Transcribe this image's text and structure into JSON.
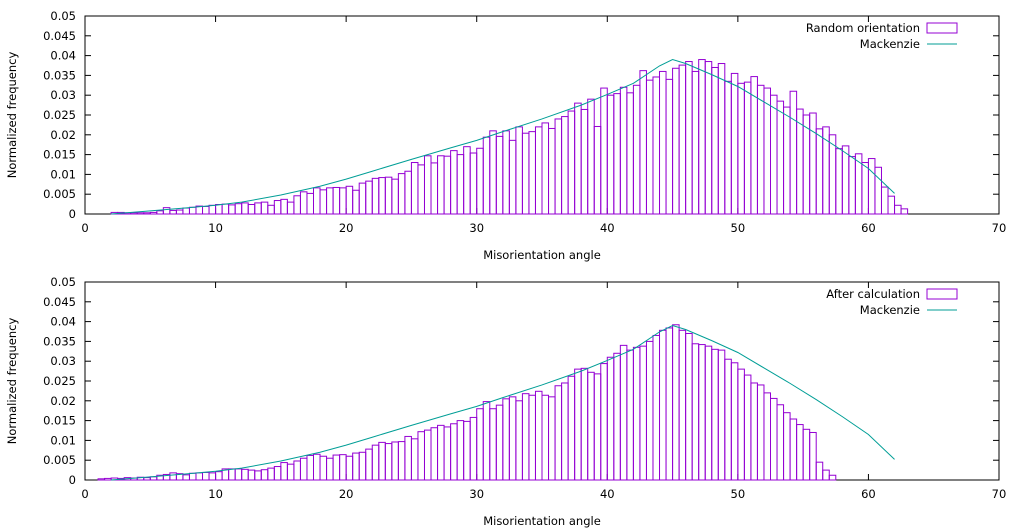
{
  "chart_data": [
    {
      "type": "bar",
      "xlabel": "Misorientation angle",
      "ylabel": "Normalized frequency",
      "xlim": [
        0,
        70
      ],
      "ylim": [
        0,
        0.05
      ],
      "xticks": [
        "0",
        "10",
        "20",
        "30",
        "40",
        "50",
        "60",
        "70"
      ],
      "yticks": [
        "0",
        "0.005",
        "0.01",
        "0.015",
        "0.02",
        "0.025",
        "0.03",
        "0.035",
        "0.04",
        "0.045",
        "0.05"
      ],
      "grid": false,
      "legend_position": "top-right",
      "bin_start": 1.5,
      "bin_width": 0.5,
      "series": [
        {
          "name": "Random orientation",
          "kind": "histogram",
          "color": "#9400d3",
          "values": [
            0,
            0.0004,
            0.0004,
            0.0003,
            0.0003,
            0.0003,
            0.0003,
            0.0004,
            0.0008,
            0.0016,
            0.0009,
            0.001,
            0.0015,
            0.0017,
            0.002,
            0.0019,
            0.0022,
            0.0024,
            0.0025,
            0.0023,
            0.0026,
            0.0028,
            0.0024,
            0.0028,
            0.003,
            0.0022,
            0.0034,
            0.0037,
            0.003,
            0.0046,
            0.0056,
            0.0052,
            0.0066,
            0.0061,
            0.0066,
            0.0067,
            0.0066,
            0.007,
            0.006,
            0.0078,
            0.0083,
            0.009,
            0.0092,
            0.0093,
            0.0088,
            0.0102,
            0.0108,
            0.013,
            0.0124,
            0.0147,
            0.0129,
            0.0147,
            0.0146,
            0.016,
            0.015,
            0.017,
            0.0154,
            0.0166,
            0.0194,
            0.021,
            0.0196,
            0.021,
            0.0186,
            0.022,
            0.0204,
            0.0208,
            0.022,
            0.023,
            0.0216,
            0.024,
            0.0246,
            0.026,
            0.028,
            0.0264,
            0.029,
            0.0221,
            0.0318,
            0.03,
            0.0304,
            0.032,
            0.0306,
            0.0325,
            0.0362,
            0.0338,
            0.0346,
            0.036,
            0.034,
            0.0368,
            0.0376,
            0.0385,
            0.036,
            0.039,
            0.0385,
            0.037,
            0.038,
            0.0335,
            0.0355,
            0.033,
            0.0333,
            0.0347,
            0.0325,
            0.0318,
            0.03,
            0.0285,
            0.027,
            0.031,
            0.0265,
            0.025,
            0.0255,
            0.0215,
            0.022,
            0.02,
            0.0165,
            0.0172,
            0.0145,
            0.0152,
            0.013,
            0.014,
            0.0118,
            0.0068,
            0.0045,
            0.0022,
            0.0013
          ]
        },
        {
          "name": "Mackenzie",
          "kind": "line",
          "color": "#009e96",
          "x": [
            2,
            5,
            8,
            10,
            12,
            15,
            18,
            20,
            22,
            25,
            28,
            30,
            32,
            35,
            38,
            40,
            42,
            44,
            45,
            46,
            48,
            50,
            52,
            54,
            56,
            58,
            60,
            62
          ],
          "y": [
            0,
            0.0008,
            0.0016,
            0.0022,
            0.003,
            0.0048,
            0.007,
            0.0088,
            0.0108,
            0.0138,
            0.0167,
            0.0186,
            0.0208,
            0.024,
            0.0275,
            0.0302,
            0.033,
            0.0374,
            0.039,
            0.038,
            0.0352,
            0.0322,
            0.0283,
            0.0244,
            0.0203,
            0.016,
            0.0115,
            0.0052
          ]
        }
      ]
    },
    {
      "type": "bar",
      "xlabel": "Misorientation angle",
      "ylabel": "Normalized frequency",
      "xlim": [
        0,
        70
      ],
      "ylim": [
        0,
        0.05
      ],
      "xticks": [
        "0",
        "10",
        "20",
        "30",
        "40",
        "50",
        "60",
        "70"
      ],
      "yticks": [
        "0",
        "0.005",
        "0.01",
        "0.015",
        "0.02",
        "0.025",
        "0.03",
        "0.035",
        "0.04",
        "0.045",
        "0.05"
      ],
      "grid": false,
      "legend_position": "top-right",
      "bin_start": 1.0,
      "bin_width": 0.5,
      "series": [
        {
          "name": "After calculation",
          "kind": "histogram",
          "color": "#9400d3",
          "values": [
            0.0003,
            0.0004,
            0.0005,
            0.0004,
            0.0006,
            0.0005,
            0.0007,
            0.0006,
            0.0008,
            0.0012,
            0.0014,
            0.0018,
            0.0016,
            0.0013,
            0.0017,
            0.0018,
            0.0019,
            0.0018,
            0.0021,
            0.0028,
            0.0028,
            0.0028,
            0.0027,
            0.0025,
            0.0023,
            0.0026,
            0.003,
            0.0034,
            0.0044,
            0.004,
            0.0048,
            0.0055,
            0.0062,
            0.0065,
            0.006,
            0.0055,
            0.0063,
            0.0064,
            0.006,
            0.0068,
            0.007,
            0.0078,
            0.0088,
            0.0095,
            0.0092,
            0.0096,
            0.0097,
            0.011,
            0.0104,
            0.0122,
            0.0126,
            0.0132,
            0.0138,
            0.0134,
            0.0142,
            0.015,
            0.0148,
            0.0158,
            0.018,
            0.0198,
            0.018,
            0.0189,
            0.0205,
            0.021,
            0.02,
            0.0218,
            0.0214,
            0.0224,
            0.0214,
            0.021,
            0.0238,
            0.0245,
            0.0262,
            0.028,
            0.0282,
            0.0272,
            0.0268,
            0.0294,
            0.031,
            0.032,
            0.034,
            0.0328,
            0.0335,
            0.0338,
            0.035,
            0.0365,
            0.0378,
            0.0384,
            0.0392,
            0.0378,
            0.037,
            0.0344,
            0.0342,
            0.0338,
            0.033,
            0.0328,
            0.0305,
            0.0296,
            0.028,
            0.0265,
            0.0245,
            0.024,
            0.022,
            0.0206,
            0.019,
            0.017,
            0.0154,
            0.014,
            0.0128,
            0.012,
            0.0045,
            0.0025,
            0.0012
          ]
        },
        {
          "name": "Mackenzie",
          "kind": "line",
          "color": "#009e96",
          "x": [
            2,
            5,
            8,
            10,
            12,
            15,
            18,
            20,
            22,
            25,
            28,
            30,
            32,
            35,
            38,
            40,
            42,
            44,
            45,
            46,
            48,
            50,
            52,
            54,
            56,
            58,
            60,
            62
          ],
          "y": [
            0,
            0.0008,
            0.0016,
            0.0022,
            0.003,
            0.0048,
            0.007,
            0.0088,
            0.0108,
            0.0138,
            0.0167,
            0.0186,
            0.0208,
            0.024,
            0.0275,
            0.0302,
            0.033,
            0.0374,
            0.039,
            0.038,
            0.0352,
            0.0322,
            0.0283,
            0.0244,
            0.0203,
            0.016,
            0.0115,
            0.0052
          ]
        }
      ]
    }
  ]
}
